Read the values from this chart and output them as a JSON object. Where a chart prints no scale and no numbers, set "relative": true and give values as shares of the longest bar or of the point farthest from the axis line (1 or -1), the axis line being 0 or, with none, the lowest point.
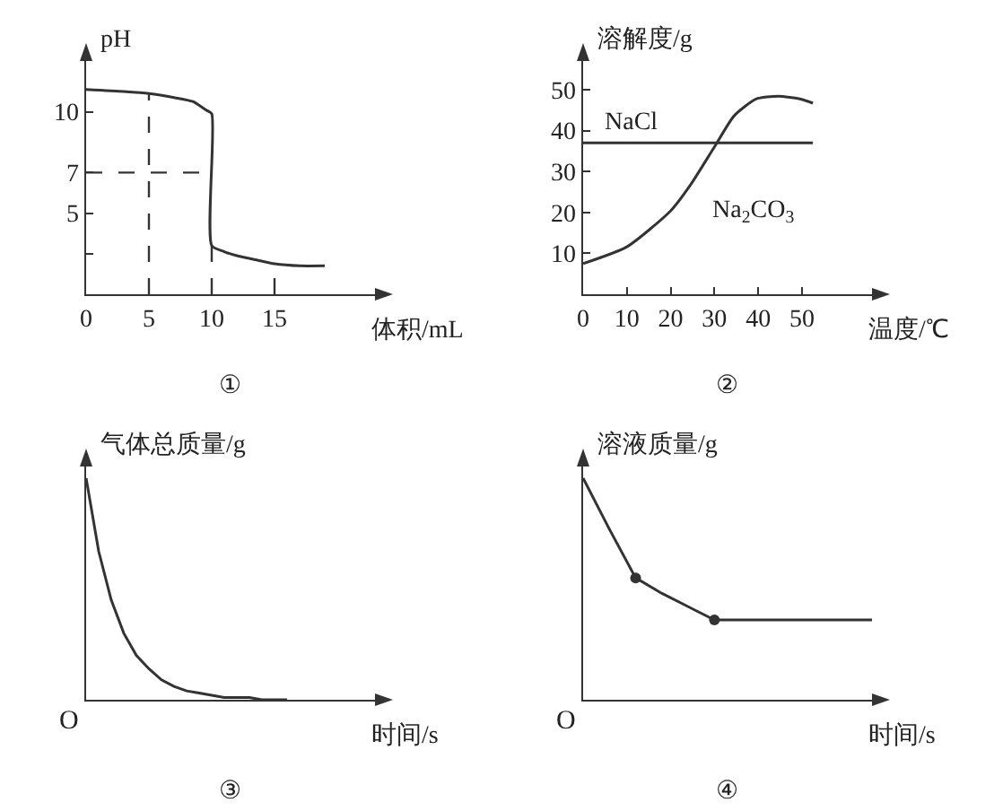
{
  "chart_data": [
    {
      "type": "line",
      "xlabel": "体积/mL",
      "ylabel": "pH",
      "xlim": [
        0,
        23
      ],
      "xticks": [
        0,
        5,
        10,
        15
      ],
      "ylim": [
        1,
        12.5
      ],
      "yticks": [
        {
          "value": 3,
          "label": null
        },
        5,
        7,
        10
      ],
      "grid": false,
      "line_style": "solid",
      "series": [
        {
          "color": "#333333",
          "x": [
            0,
            3,
            5,
            7,
            8.5,
            9.5,
            10,
            10,
            11,
            12,
            13.5,
            15,
            17,
            19
          ],
          "values": [
            11.1,
            11,
            10.9,
            10.7,
            10.5,
            10.1,
            9.9,
            3.4,
            3.1,
            2.9,
            2.7,
            2.5,
            2.4,
            2.4
          ]
        }
      ],
      "ref_lines": [
        {
          "axis": "x",
          "value": 5,
          "line_style": "dashed"
        },
        {
          "axis": "x",
          "value": 10,
          "line_style": "dashed"
        },
        {
          "axis": "x",
          "value": 15,
          "line_style": "dashed"
        },
        {
          "axis": "y",
          "value": 7,
          "line_style": "dashed"
        }
      ],
      "annotations": [
        "①"
      ]
    },
    {
      "type": "line",
      "xlabel": "温度/℃",
      "ylabel": "溶解度/g",
      "xlim": [
        0,
        66
      ],
      "xticks": [
        0,
        10,
        20,
        30,
        40,
        50
      ],
      "ylim": [
        0,
        57
      ],
      "yticks": [
        10,
        20,
        30,
        40,
        50
      ],
      "grid": false,
      "series": [
        {
          "name": "NaCl",
          "color": "#333333",
          "x": [
            0,
            52.5
          ],
          "values": [
            37,
            37
          ]
        },
        {
          "name": "Na$_{2}$CO$_{3}$",
          "color": "#333333",
          "x": [
            0,
            10,
            20,
            24.7,
            30,
            34.5,
            39.5,
            44.6,
            49.7,
            52.5
          ],
          "values": [
            7.5,
            11.6,
            20.4,
            27,
            36,
            43.6,
            47.7,
            48.4,
            47.7,
            46.7
          ]
        }
      ],
      "annotations": [
        "②"
      ]
    },
    {
      "type": "line",
      "relative": true,
      "xlabel": "时间/s",
      "ylabel": "气体总质量/g",
      "grid": false,
      "categories": [
        null,
        null,
        null,
        null,
        null,
        null,
        null,
        null,
        null,
        null,
        null,
        null,
        null,
        null,
        null,
        null,
        null,
        null,
        null,
        null,
        null,
        null,
        null,
        null
      ],
      "series": [
        {
          "color": "#333333",
          "values": [
            1,
            0.67,
            0.45,
            0.3,
            0.2,
            0.14,
            0.09,
            0.06,
            0.04,
            0.03,
            0.02,
            0.01,
            0.01,
            0.01,
            0,
            0,
            0,
            null,
            null,
            null,
            null,
            null,
            null,
            null
          ]
        }
      ],
      "annotations": [
        "O",
        "③"
      ]
    },
    {
      "type": "line",
      "relative": true,
      "xlabel": "时间/s",
      "ylabel": "溶液质量/g",
      "grid": false,
      "categories": [
        null,
        null,
        null,
        null,
        null,
        null,
        null,
        null,
        null,
        null,
        null,
        null
      ],
      "series": [
        {
          "color": "#333333",
          "values": [
            1,
            0.77,
            0.55,
            0.48,
            0.42,
            0.36,
            0.36,
            0.36,
            0.36,
            0.36,
            0.36,
            0.36
          ]
        }
      ],
      "annotations": [
        "O",
        "④"
      ]
    }
  ]
}
